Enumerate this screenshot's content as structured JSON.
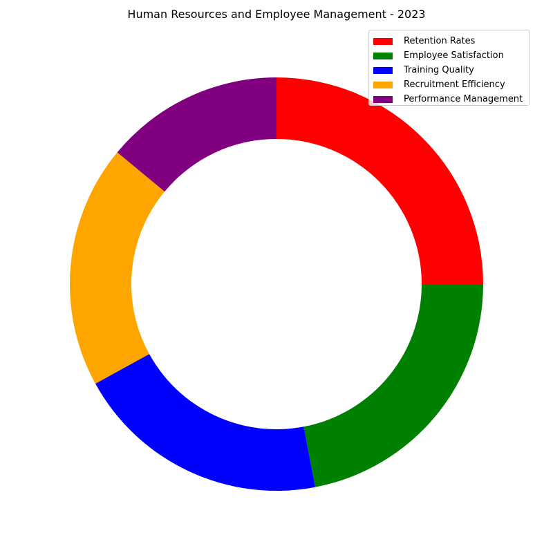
{
  "chart_data": {
    "type": "pie",
    "style": "donut",
    "title": "Human Resources and Employee Management - 2023",
    "categories": [
      "Retention Rates",
      "Employee Satisfaction",
      "Training Quality",
      "Recruitment Efficiency",
      "Performance Management"
    ],
    "values": [
      25,
      22,
      20,
      19,
      14
    ],
    "colors": [
      "#ff0000",
      "#008000",
      "#0000ff",
      "#ffa500",
      "#800080"
    ],
    "start_angle_deg": 90,
    "direction": "clockwise",
    "legend_position": "top-right"
  }
}
